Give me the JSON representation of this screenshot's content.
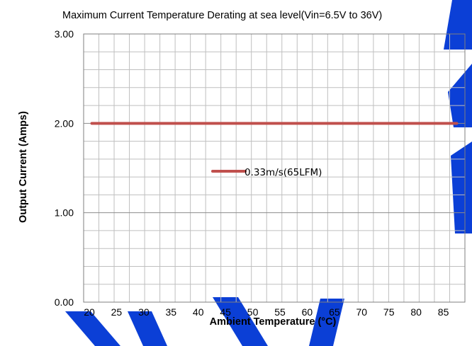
{
  "chart_data": {
    "type": "line",
    "title": "Maximum Current Temperature Derating at sea level(Vin=6.5V to 36V)",
    "xlabel": "Ambient Temperature (°C)",
    "ylabel": "Output Current (Amps)",
    "x_ticks": [
      "20",
      "25",
      "30",
      "35",
      "40",
      "45",
      "50",
      "55",
      "60",
      "65",
      "70",
      "75",
      "80",
      "85"
    ],
    "y_ticks": [
      "0.00",
      "1.00",
      "2.00",
      "3.00"
    ],
    "xlim": [
      20,
      90
    ],
    "ylim": [
      0,
      3
    ],
    "grid": true,
    "legend_position": "center",
    "series": [
      {
        "name": "0.33m/s(65LFM)",
        "color": "#c0504d",
        "x": [
          21.5,
          88.5
        ],
        "y": [
          2.0,
          2.0
        ]
      }
    ]
  }
}
